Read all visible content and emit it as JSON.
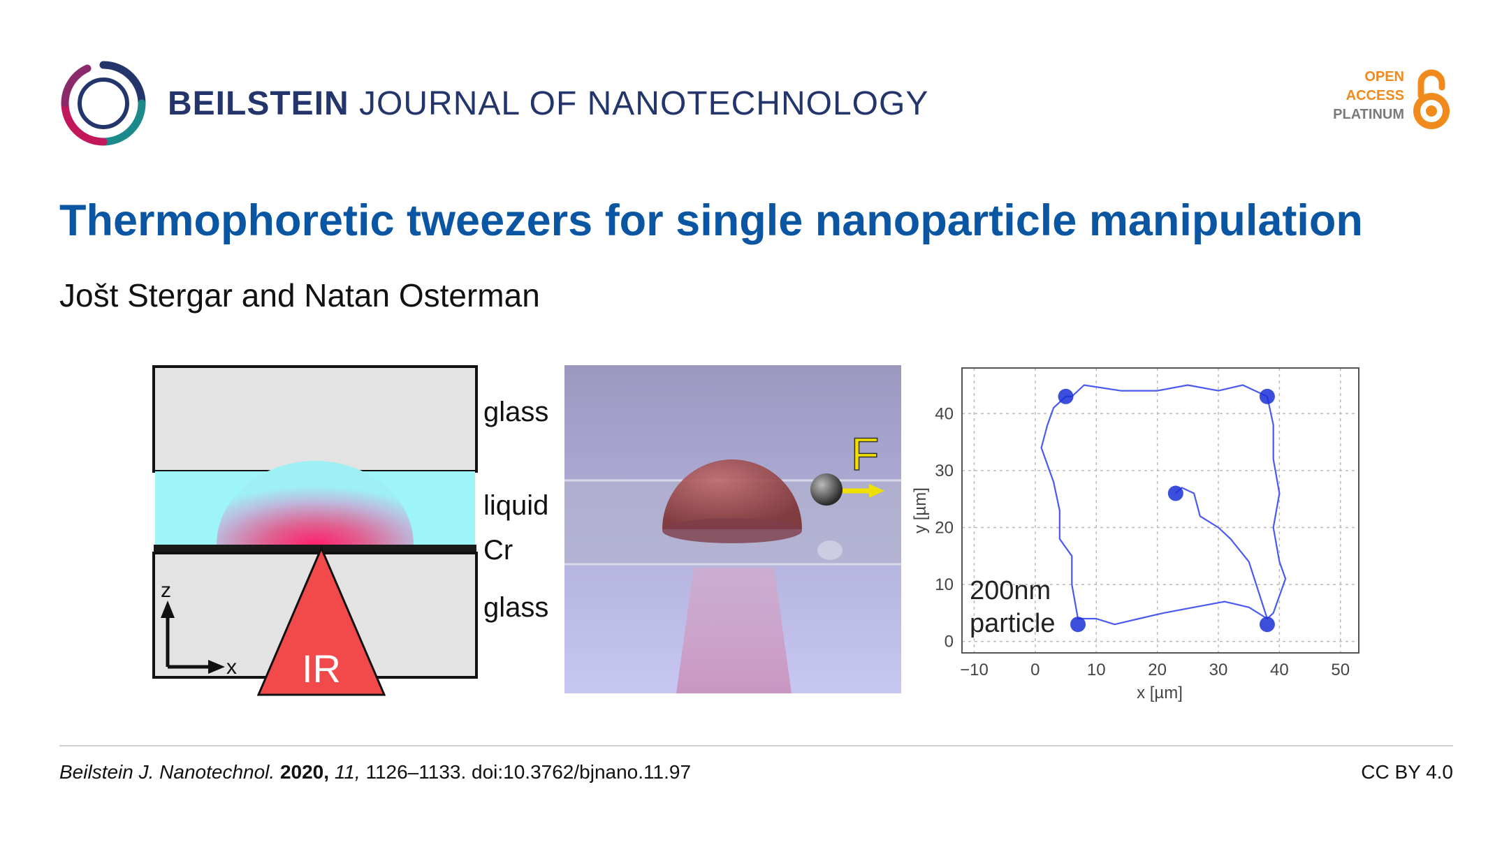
{
  "journal": {
    "name_bold": "BEILSTEIN",
    "name_rest": "JOURNAL OF NANOTECHNOLOGY"
  },
  "badge": {
    "line1": "OPEN",
    "line2": "ACCESS",
    "line3": "PLATINUM",
    "color": "#f08a1c"
  },
  "article": {
    "title": "Thermophoretic tweezers for single nanoparticle manipulation",
    "authors": "Jošt Stergar and Natan Osterman"
  },
  "figure": {
    "schematic": {
      "label_glass_top": "glass",
      "label_liquid": "liquid",
      "label_cr": "Cr",
      "label_glass_bottom": "glass",
      "label_z": "z",
      "label_x": "x",
      "label_ir": "IR"
    },
    "render": {
      "force_label": "F"
    },
    "plot": {
      "x_ticks": [
        "−10",
        "0",
        "10",
        "20",
        "30",
        "40",
        "50"
      ],
      "y_ticks": [
        "0",
        "10",
        "20",
        "30",
        "40"
      ],
      "x_label": "x [µm]",
      "y_label": "y [µm]",
      "annotation_line1": "200nm",
      "annotation_line2": "particle"
    }
  },
  "chart_data": {
    "type": "line",
    "title": "",
    "xlabel": "x [µm]",
    "ylabel": "y [µm]",
    "xlim": [
      -12,
      53
    ],
    "ylim": [
      -2,
      48
    ],
    "grid": true,
    "series": [
      {
        "x": [
          6,
          8,
          14,
          20,
          25,
          30,
          34,
          38,
          39,
          39,
          40,
          39,
          40,
          41,
          40,
          39,
          38,
          35,
          31,
          26,
          21,
          17,
          13,
          10,
          7,
          6,
          6,
          4,
          4,
          3,
          1,
          2,
          3,
          5,
          6,
          23,
          24,
          26,
          27,
          30,
          32,
          35,
          38
        ],
        "y": [
          43,
          45,
          44,
          44,
          45,
          44,
          45,
          43,
          38,
          32,
          26,
          20,
          14,
          11,
          8,
          5,
          4,
          6,
          7,
          6,
          5,
          4,
          3,
          4,
          4,
          10,
          15,
          18,
          23,
          28,
          34,
          38,
          41,
          43,
          43,
          26,
          27,
          26,
          22,
          20,
          18,
          14,
          4
        ]
      }
    ],
    "clusters": [
      [
        5,
        43
      ],
      [
        38,
        43
      ],
      [
        23,
        26
      ],
      [
        7,
        3
      ],
      [
        38,
        3
      ]
    ]
  },
  "footer": {
    "journal_abbrev": "Beilstein J. Nanotechnol.",
    "year": "2020,",
    "volume": "11,",
    "pages_doi": "1126–1133. doi:10.3762/bjnano.11.97",
    "license": "CC BY 4.0"
  }
}
